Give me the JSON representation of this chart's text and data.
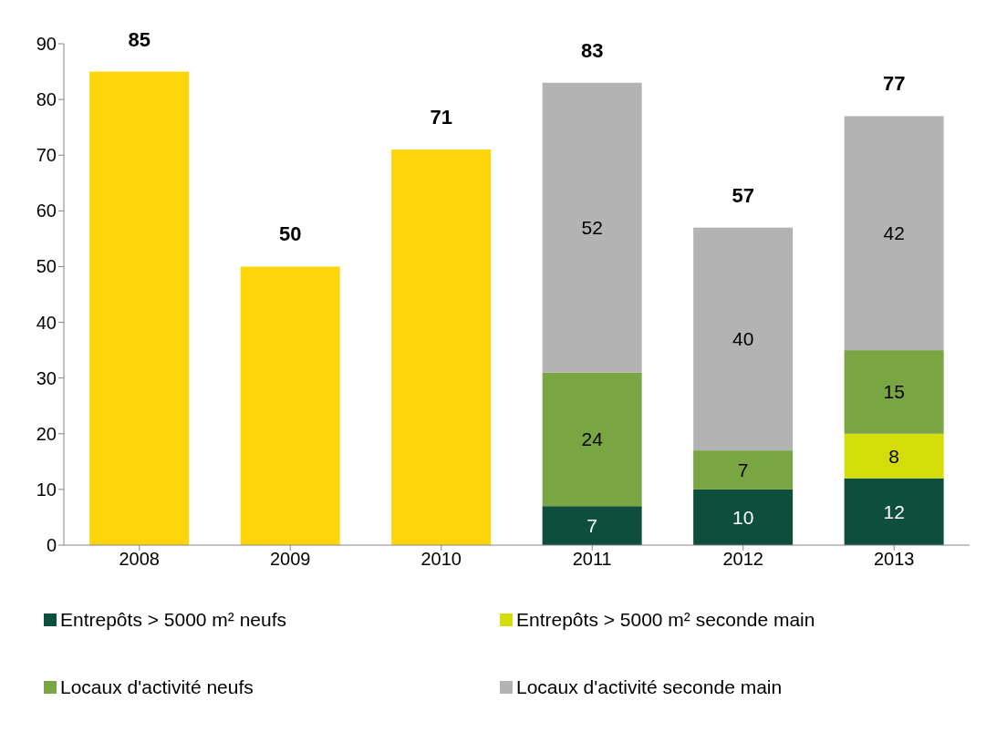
{
  "chart_data": {
    "type": "bar",
    "stacked": true,
    "categories": [
      "2008",
      "2009",
      "2010",
      "2011",
      "2012",
      "2013"
    ],
    "series": [
      {
        "color": "#fdd508",
        "values": [
          85,
          50,
          71,
          null,
          null,
          null
        ],
        "value_labels": [
          null,
          null,
          null,
          null,
          null,
          null
        ]
      },
      {
        "name": "Entrepôts > 5000 m² neufs",
        "color": "#0d4f3c",
        "values": [
          null,
          null,
          null,
          7,
          10,
          12
        ],
        "value_labels": [
          null,
          null,
          null,
          "7",
          "10",
          "12"
        ]
      },
      {
        "name": "Entrepôts > 5000 m² seconde main",
        "color": "#d4dd0a",
        "values": [
          null,
          null,
          null,
          null,
          null,
          8
        ],
        "value_labels": [
          null,
          null,
          null,
          null,
          null,
          "8"
        ]
      },
      {
        "name": "Locaux d'activité neufs",
        "color": "#7aa543",
        "values": [
          null,
          null,
          null,
          24,
          7,
          15
        ],
        "value_labels": [
          null,
          null,
          null,
          "24",
          "7",
          "15"
        ]
      },
      {
        "name": "Locaux d'activité seconde main",
        "color": "#b3b3b3",
        "values": [
          null,
          null,
          null,
          52,
          40,
          42
        ],
        "value_labels": [
          null,
          null,
          null,
          "52",
          "40",
          "42"
        ]
      }
    ],
    "totals": [
      "85",
      "50",
      "71",
      "83",
      "57",
      "77"
    ],
    "ylim": [
      0,
      90
    ],
    "yticks": [
      0,
      10,
      20,
      30,
      40,
      50,
      60,
      70,
      80,
      90
    ],
    "grid": false,
    "legend": "bottom"
  }
}
